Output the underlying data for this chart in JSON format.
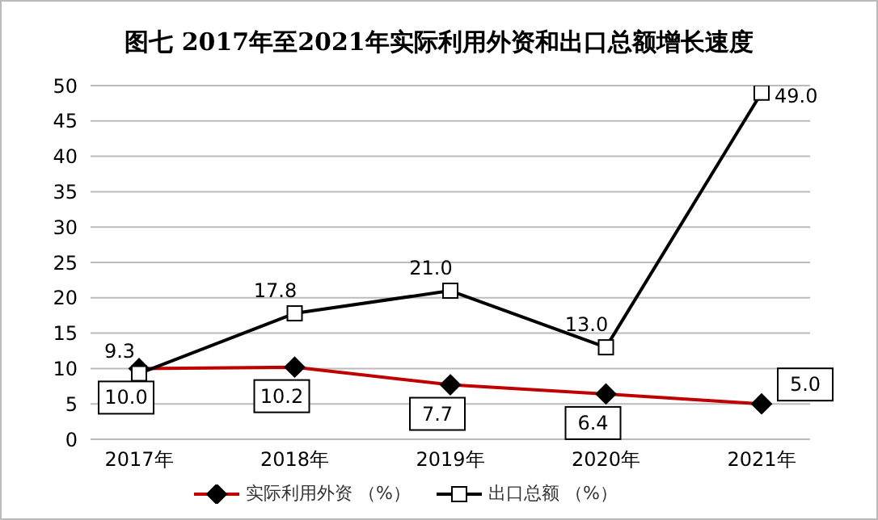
{
  "chart_data": {
    "type": "line",
    "title": "图七  2017年至2021年实际利用外资和出口总额增长速度",
    "categories": [
      "2017年",
      "2018年",
      "2019年",
      "2020年",
      "2021年"
    ],
    "series": [
      {
        "name": "实际利用外资 （%）",
        "color": "#c00000",
        "marker": "diamond",
        "values": [
          10.0,
          10.2,
          7.7,
          6.4,
          5.0
        ],
        "value_labels": [
          "10.0",
          "10.2",
          "7.7",
          "6.4",
          "5.0"
        ]
      },
      {
        "name": "出口总额 （%）",
        "color": "#000000",
        "marker": "square",
        "values": [
          9.3,
          17.8,
          21.0,
          13.0,
          49.0
        ],
        "value_labels": [
          "9.3",
          "17.8",
          "21.0",
          "13.0",
          "49.0"
        ]
      }
    ],
    "ylim": [
      0,
      50
    ],
    "yticks": [
      0,
      5,
      10,
      15,
      20,
      25,
      30,
      35,
      40,
      45,
      50
    ],
    "grid": "y",
    "legend": "bottom"
  }
}
